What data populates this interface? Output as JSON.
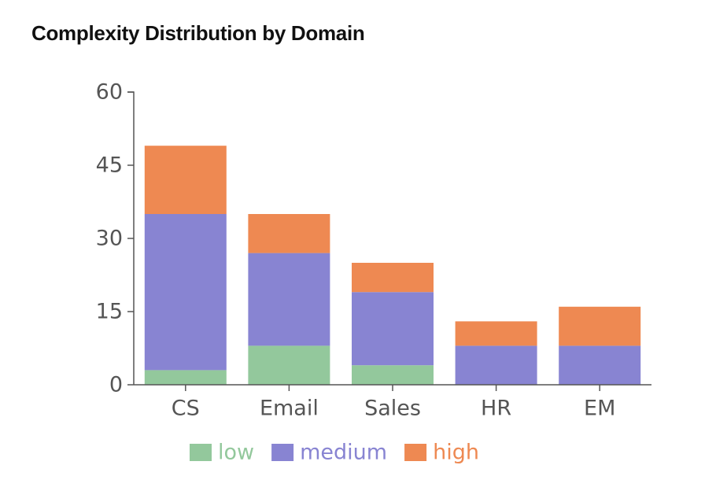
{
  "chart_data": {
    "type": "bar",
    "stacked": true,
    "title": "Complexity Distribution by Domain",
    "xlabel": "",
    "ylabel": "",
    "categories": [
      "CS",
      "Email",
      "Sales",
      "HR",
      "EM"
    ],
    "series": [
      {
        "name": "low",
        "color": "#93c89c",
        "values": [
          3,
          8,
          4,
          0,
          0
        ]
      },
      {
        "name": "medium",
        "color": "#8884d2",
        "values": [
          32,
          19,
          15,
          8,
          8
        ]
      },
      {
        "name": "high",
        "color": "#ee8952",
        "values": [
          14,
          8,
          6,
          5,
          8
        ]
      }
    ],
    "ylim": [
      0,
      60
    ],
    "yticks": [
      0,
      15,
      30,
      45,
      60
    ],
    "grid": false,
    "legend_position": "bottom"
  }
}
